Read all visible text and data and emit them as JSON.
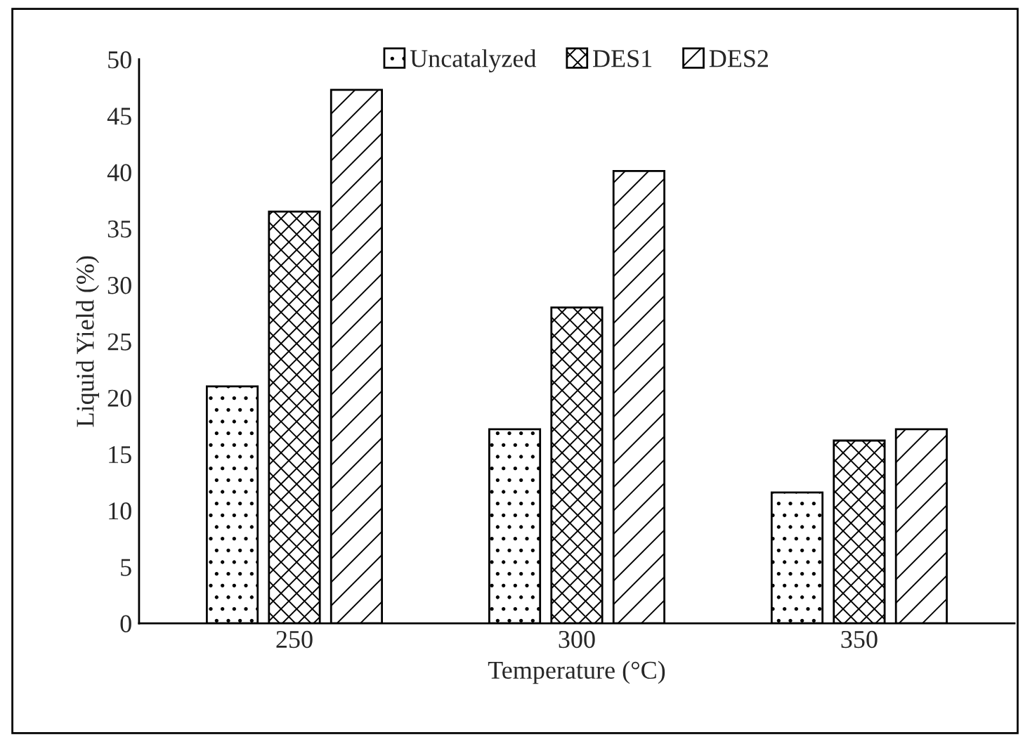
{
  "chart_data": {
    "type": "bar",
    "xlabel": "Temperature (°C)",
    "ylabel": "Liquid Yield (%)",
    "categories": [
      "250",
      "300",
      "350"
    ],
    "series": [
      {
        "name": "Uncatalyzed",
        "color": "#000000",
        "values": [
          21,
          17.2,
          11.6
        ]
      },
      {
        "name": "DES1",
        "color": "#000000",
        "values": [
          36.5,
          28,
          16.2
        ]
      },
      {
        "name": "DES2",
        "color": "#000000",
        "values": [
          47.3,
          40.1,
          17.2
        ]
      }
    ],
    "ylim": [
      0,
      50
    ],
    "yticks": [
      0,
      5,
      10,
      15,
      20,
      25,
      30,
      35,
      40,
      45,
      50
    ],
    "grid": false,
    "legend": "top"
  }
}
